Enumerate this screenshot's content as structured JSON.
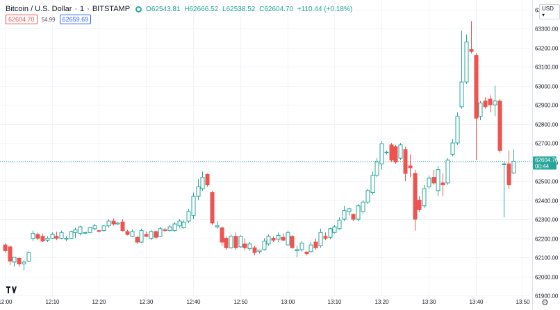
{
  "legend": {
    "symbol": "Bitcoin / U.S. Dollar",
    "interval": "1",
    "exchange": "BITSTAMP",
    "open": "O62543.81",
    "high": "H62666.52",
    "low": "L62538.52",
    "close": "C62604.70",
    "change": "+110.44 (+0.18%)"
  },
  "prices": {
    "bid": "62604.70",
    "spread": "54.99",
    "ask": "62659.69"
  },
  "currency": "USD",
  "last_price": {
    "value": "62604.70",
    "countdown": "00:44"
  },
  "colors": {
    "up": "#26a69a",
    "down": "#ef5350",
    "filled_up": "#26a69a",
    "grid": "#f0f3fa",
    "axis_text": "#131722",
    "last_line": "#26a69a"
  },
  "icons": {
    "logo": "tradingview-logo-icon",
    "settings": "gear-icon"
  },
  "chart_data": {
    "type": "candlestick",
    "interval_minutes": 1,
    "xlim": [
      "11:59",
      "13:52"
    ],
    "ylim": [
      61900,
      63450
    ],
    "x_ticks": [
      "12:00",
      "12:10",
      "12:20",
      "12:30",
      "12:40",
      "12:50",
      "13:00",
      "13:10",
      "13:20",
      "13:30",
      "13:40",
      "13:50"
    ],
    "y_ticks": [
      61900,
      62000,
      62100,
      62200,
      62300,
      62400,
      62500,
      62600,
      62700,
      62800,
      62900,
      63000,
      63100,
      63200,
      63300,
      63400
    ],
    "grid": true,
    "candles": [
      {
        "t": "12:00",
        "o": 62165,
        "h": 62175,
        "l": 62125,
        "c": 62135
      },
      {
        "t": "12:01",
        "o": 62155,
        "h": 62160,
        "l": 62060,
        "c": 62080
      },
      {
        "t": "12:02",
        "o": 62075,
        "h": 62095,
        "l": 62050,
        "c": 62100
      },
      {
        "t": "12:03",
        "o": 62095,
        "h": 62100,
        "l": 62050,
        "c": 62065
      },
      {
        "t": "12:04",
        "o": 62065,
        "h": 62085,
        "l": 62030,
        "c": 62075
      },
      {
        "t": "12:05",
        "o": 62080,
        "h": 62130,
        "l": 62075,
        "c": 62125
      },
      {
        "t": "12:06",
        "o": 62200,
        "h": 62240,
        "l": 62185,
        "c": 62225
      },
      {
        "t": "12:07",
        "o": 62220,
        "h": 62230,
        "l": 62190,
        "c": 62200
      },
      {
        "t": "12:08",
        "o": 62210,
        "h": 62225,
        "l": 62180,
        "c": 62185
      },
      {
        "t": "12:09",
        "o": 62190,
        "h": 62210,
        "l": 62180,
        "c": 62200
      },
      {
        "t": "12:10",
        "o": 62200,
        "h": 62230,
        "l": 62195,
        "c": 62220
      },
      {
        "t": "12:11",
        "o": 62210,
        "h": 62235,
        "l": 62190,
        "c": 62200
      },
      {
        "t": "12:12",
        "o": 62200,
        "h": 62240,
        "l": 62195,
        "c": 62230
      },
      {
        "t": "12:13",
        "o": 62195,
        "h": 62210,
        "l": 62185,
        "c": 62200
      },
      {
        "t": "12:14",
        "o": 62200,
        "h": 62240,
        "l": 62195,
        "c": 62235
      },
      {
        "t": "12:15",
        "o": 62230,
        "h": 62255,
        "l": 62200,
        "c": 62245
      },
      {
        "t": "12:16",
        "o": 62225,
        "h": 62265,
        "l": 62215,
        "c": 62260
      },
      {
        "t": "12:17",
        "o": 62228,
        "h": 62235,
        "l": 62222,
        "c": 62230
      },
      {
        "t": "12:18",
        "o": 62230,
        "h": 62260,
        "l": 62225,
        "c": 62255
      },
      {
        "t": "12:19",
        "o": 62250,
        "h": 62275,
        "l": 62240,
        "c": 62265
      },
      {
        "t": "12:20",
        "o": 62240,
        "h": 62245,
        "l": 62230,
        "c": 62238
      },
      {
        "t": "12:21",
        "o": 62240,
        "h": 62270,
        "l": 62235,
        "c": 62265
      },
      {
        "t": "12:22",
        "o": 62265,
        "h": 62300,
        "l": 62255,
        "c": 62290
      },
      {
        "t": "12:23",
        "o": 62290,
        "h": 62305,
        "l": 62265,
        "c": 62275
      },
      {
        "t": "12:24",
        "o": 62275,
        "h": 62285,
        "l": 62270,
        "c": 62280
      },
      {
        "t": "12:25",
        "o": 62285,
        "h": 62300,
        "l": 62235,
        "c": 62240
      },
      {
        "t": "12:26",
        "o": 62235,
        "h": 62245,
        "l": 62215,
        "c": 62220
      },
      {
        "t": "12:27",
        "o": 62210,
        "h": 62245,
        "l": 62205,
        "c": 62235
      },
      {
        "t": "12:28",
        "o": 62205,
        "h": 62210,
        "l": 62170,
        "c": 62180
      },
      {
        "t": "12:29",
        "o": 62180,
        "h": 62250,
        "l": 62175,
        "c": 62240
      },
      {
        "t": "12:30",
        "o": 62220,
        "h": 62235,
        "l": 62205,
        "c": 62210
      },
      {
        "t": "12:31",
        "o": 62200,
        "h": 62245,
        "l": 62190,
        "c": 62235
      },
      {
        "t": "12:32",
        "o": 62235,
        "h": 62240,
        "l": 62195,
        "c": 62205
      },
      {
        "t": "12:33",
        "o": 62210,
        "h": 62260,
        "l": 62205,
        "c": 62250
      },
      {
        "t": "12:34",
        "o": 62245,
        "h": 62255,
        "l": 62235,
        "c": 62240
      },
      {
        "t": "12:35",
        "o": 62240,
        "h": 62270,
        "l": 62235,
        "c": 62260
      },
      {
        "t": "12:36",
        "o": 62240,
        "h": 62285,
        "l": 62235,
        "c": 62275
      },
      {
        "t": "12:37",
        "o": 62265,
        "h": 62300,
        "l": 62255,
        "c": 62290
      },
      {
        "t": "12:38",
        "o": 62255,
        "h": 62295,
        "l": 62250,
        "c": 62285
      },
      {
        "t": "12:39",
        "o": 62290,
        "h": 62355,
        "l": 62280,
        "c": 62340
      },
      {
        "t": "12:40",
        "o": 62320,
        "h": 62440,
        "l": 62300,
        "c": 62420
      },
      {
        "t": "12:41",
        "o": 62420,
        "h": 62510,
        "l": 62400,
        "c": 62470
      },
      {
        "t": "12:42",
        "o": 62460,
        "h": 62550,
        "l": 62450,
        "c": 62520
      },
      {
        "t": "12:43",
        "o": 62535,
        "h": 62540,
        "l": 62470,
        "c": 62480
      },
      {
        "t": "12:44",
        "o": 62440,
        "h": 62450,
        "l": 62270,
        "c": 62280
      },
      {
        "t": "12:45",
        "o": 62260,
        "h": 62290,
        "l": 62250,
        "c": 62265
      },
      {
        "t": "12:46",
        "o": 62255,
        "h": 62260,
        "l": 62160,
        "c": 62180
      },
      {
        "t": "12:47",
        "o": 62200,
        "h": 62210,
        "l": 62140,
        "c": 62150
      },
      {
        "t": "12:48",
        "o": 62150,
        "h": 62220,
        "l": 62145,
        "c": 62210
      },
      {
        "t": "12:49",
        "o": 62210,
        "h": 62230,
        "l": 62140,
        "c": 62150
      },
      {
        "t": "12:50",
        "o": 62155,
        "h": 62215,
        "l": 62150,
        "c": 62210
      },
      {
        "t": "12:51",
        "o": 62170,
        "h": 62200,
        "l": 62135,
        "c": 62150
      },
      {
        "t": "12:52",
        "o": 62145,
        "h": 62180,
        "l": 62135,
        "c": 62170
      },
      {
        "t": "12:53",
        "o": 62150,
        "h": 62160,
        "l": 62110,
        "c": 62125
      },
      {
        "t": "12:54",
        "o": 62130,
        "h": 62140,
        "l": 62120,
        "c": 62138
      },
      {
        "t": "12:55",
        "o": 62140,
        "h": 62200,
        "l": 62135,
        "c": 62185
      },
      {
        "t": "12:56",
        "o": 62170,
        "h": 62220,
        "l": 62160,
        "c": 62210
      },
      {
        "t": "12:57",
        "o": 62200,
        "h": 62210,
        "l": 62180,
        "c": 62190
      },
      {
        "t": "12:58",
        "o": 62195,
        "h": 62230,
        "l": 62180,
        "c": 62215
      },
      {
        "t": "12:59",
        "o": 62205,
        "h": 62225,
        "l": 62185,
        "c": 62190
      },
      {
        "t": "13:00",
        "o": 62165,
        "h": 62240,
        "l": 62160,
        "c": 62230
      },
      {
        "t": "13:01",
        "o": 62210,
        "h": 62215,
        "l": 62145,
        "c": 62150
      },
      {
        "t": "13:02",
        "o": 62135,
        "h": 62160,
        "l": 62100,
        "c": 62140
      },
      {
        "t": "13:03",
        "o": 62140,
        "h": 62185,
        "l": 62130,
        "c": 62175
      },
      {
        "t": "13:04",
        "o": 62128,
        "h": 62130,
        "l": 62110,
        "c": 62120
      },
      {
        "t": "13:05",
        "o": 62130,
        "h": 62180,
        "l": 62125,
        "c": 62165
      },
      {
        "t": "13:06",
        "o": 62180,
        "h": 62200,
        "l": 62140,
        "c": 62150
      },
      {
        "t": "13:07",
        "o": 62160,
        "h": 62250,
        "l": 62150,
        "c": 62230
      },
      {
        "t": "13:08",
        "o": 62210,
        "h": 62230,
        "l": 62190,
        "c": 62200
      },
      {
        "t": "13:09",
        "o": 62205,
        "h": 62255,
        "l": 62195,
        "c": 62250
      },
      {
        "t": "13:10",
        "o": 62230,
        "h": 62270,
        "l": 62225,
        "c": 62260
      },
      {
        "t": "13:11",
        "o": 62250,
        "h": 62310,
        "l": 62245,
        "c": 62295
      },
      {
        "t": "13:12",
        "o": 62300,
        "h": 62370,
        "l": 62290,
        "c": 62345
      },
      {
        "t": "13:13",
        "o": 62340,
        "h": 62360,
        "l": 62320,
        "c": 62355
      },
      {
        "t": "13:14",
        "o": 62325,
        "h": 62330,
        "l": 62290,
        "c": 62300
      },
      {
        "t": "13:15",
        "o": 62300,
        "h": 62380,
        "l": 62290,
        "c": 62370
      },
      {
        "t": "13:16",
        "o": 62340,
        "h": 62400,
        "l": 62330,
        "c": 62390
      },
      {
        "t": "13:17",
        "o": 62390,
        "h": 62460,
        "l": 62380,
        "c": 62450
      },
      {
        "t": "13:18",
        "o": 62440,
        "h": 62550,
        "l": 62430,
        "c": 62530
      },
      {
        "t": "13:19",
        "o": 62530,
        "h": 62620,
        "l": 62520,
        "c": 62600
      },
      {
        "t": "13:20",
        "o": 62590,
        "h": 62710,
        "l": 62560,
        "c": 62695
      },
      {
        "t": "13:21",
        "o": 62648,
        "h": 62660,
        "l": 62640,
        "c": 62652
      },
      {
        "t": "13:22",
        "o": 62690,
        "h": 62700,
        "l": 62600,
        "c": 62610
      },
      {
        "t": "13:23",
        "o": 62680,
        "h": 62690,
        "l": 62590,
        "c": 62600
      },
      {
        "t": "13:24",
        "o": 62620,
        "h": 62700,
        "l": 62610,
        "c": 62690
      },
      {
        "t": "13:25",
        "o": 62665,
        "h": 62680,
        "l": 62500,
        "c": 62540
      },
      {
        "t": "13:26",
        "o": 62580,
        "h": 62640,
        "l": 62520,
        "c": 62570
      },
      {
        "t": "13:27",
        "o": 62540,
        "h": 62560,
        "l": 62240,
        "c": 62300
      },
      {
        "t": "13:28",
        "o": 62400,
        "h": 62420,
        "l": 62340,
        "c": 62350
      },
      {
        "t": "13:29",
        "o": 62370,
        "h": 62480,
        "l": 62360,
        "c": 62460
      },
      {
        "t": "13:30",
        "o": 62470,
        "h": 62530,
        "l": 62460,
        "c": 62515
      },
      {
        "t": "13:31",
        "o": 62520,
        "h": 62560,
        "l": 62480,
        "c": 62490
      },
      {
        "t": "13:32",
        "o": 62450,
        "h": 62580,
        "l": 62420,
        "c": 62560
      },
      {
        "t": "13:33",
        "o": 62490,
        "h": 62540,
        "l": 62420,
        "c": 62480
      },
      {
        "t": "13:34",
        "o": 62490,
        "h": 62620,
        "l": 62480,
        "c": 62610
      },
      {
        "t": "13:35",
        "o": 62640,
        "h": 62720,
        "l": 62630,
        "c": 62700
      },
      {
        "t": "13:36",
        "o": 62700,
        "h": 62860,
        "l": 62690,
        "c": 62840
      },
      {
        "t": "13:37",
        "o": 62890,
        "h": 63290,
        "l": 62880,
        "c": 63020
      },
      {
        "t": "13:38",
        "o": 63020,
        "h": 63270,
        "l": 63010,
        "c": 63230
      },
      {
        "t": "13:39",
        "o": 63190,
        "h": 63340,
        "l": 63170,
        "c": 63180
      },
      {
        "t": "13:40",
        "o": 63160,
        "h": 63170,
        "l": 62610,
        "c": 62830
      },
      {
        "t": "13:41",
        "o": 62840,
        "h": 62920,
        "l": 62820,
        "c": 62910
      },
      {
        "t": "13:42",
        "o": 62920,
        "h": 62940,
        "l": 62880,
        "c": 62890
      },
      {
        "t": "13:43",
        "o": 62930,
        "h": 62950,
        "l": 62860,
        "c": 62900
      },
      {
        "t": "13:44",
        "o": 62900,
        "h": 63000,
        "l": 62840,
        "c": 62920
      },
      {
        "t": "13:45",
        "o": 62920,
        "h": 62930,
        "l": 62650,
        "c": 62660
      },
      {
        "t": "13:46",
        "o": 62590,
        "h": 62600,
        "l": 62310,
        "c": 62590
      },
      {
        "t": "13:47",
        "o": 62590,
        "h": 62660,
        "l": 62460,
        "c": 62480
      },
      {
        "t": "13:48",
        "o": 62543,
        "h": 62666,
        "l": 62538,
        "c": 62604
      }
    ]
  }
}
